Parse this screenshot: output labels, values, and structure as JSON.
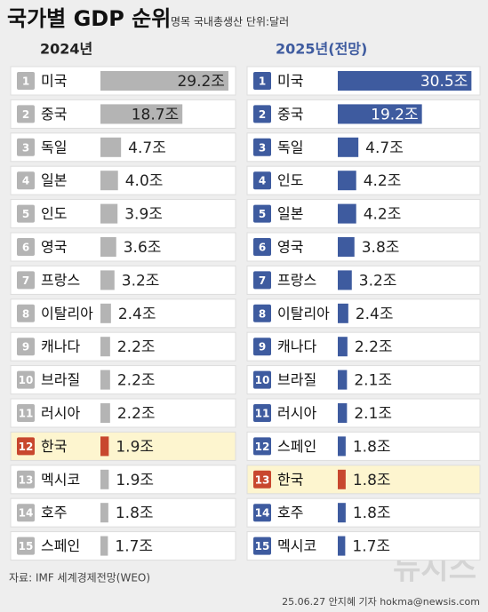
{
  "title": "국가별 GDP 순위",
  "subtitle": "명목 국내총생산 단위:달러",
  "source": "자료: IMF 세계경제전망(WEO)",
  "credit": "25.06.27 안지혜 기자 hokma@newsis.com",
  "logo": "뉴시스",
  "chart_data": [
    {
      "type": "bar",
      "title": "2024년",
      "color": "#b4b4b4",
      "title_color": "#222222",
      "highlight": "한국",
      "highlight_color": "#c8472e",
      "ranks": [
        1,
        2,
        3,
        4,
        5,
        6,
        7,
        8,
        9,
        10,
        11,
        12,
        13,
        14,
        15
      ],
      "categories": [
        "미국",
        "중국",
        "독일",
        "일본",
        "인도",
        "영국",
        "프랑스",
        "이탈리아",
        "캐나다",
        "브라질",
        "러시아",
        "한국",
        "멕시코",
        "호주",
        "스페인"
      ],
      "values": [
        29.2,
        18.7,
        4.7,
        4.0,
        3.9,
        3.6,
        3.2,
        2.4,
        2.2,
        2.2,
        2.2,
        1.9,
        1.9,
        1.8,
        1.7
      ],
      "value_labels": [
        "29.2조",
        "18.7조",
        "4.7조",
        "4.0조",
        "3.9조",
        "3.6조",
        "3.2조",
        "2.4조",
        "2.2조",
        "2.2조",
        "2.2조",
        "1.9조",
        "1.9조",
        "1.8조",
        "1.7조"
      ]
    },
    {
      "type": "bar",
      "title": "2025년(전망)",
      "color": "#3e5b9f",
      "title_color": "#3e5b9f",
      "highlight": "한국",
      "highlight_color": "#c8472e",
      "ranks": [
        1,
        2,
        3,
        4,
        5,
        6,
        7,
        8,
        9,
        10,
        11,
        12,
        13,
        14,
        15
      ],
      "categories": [
        "미국",
        "중국",
        "독일",
        "인도",
        "일본",
        "영국",
        "프랑스",
        "이탈리아",
        "캐나다",
        "브라질",
        "러시아",
        "스페인",
        "한국",
        "호주",
        "멕시코"
      ],
      "values": [
        30.5,
        19.2,
        4.7,
        4.2,
        4.2,
        3.8,
        3.2,
        2.4,
        2.2,
        2.1,
        2.1,
        1.8,
        1.8,
        1.8,
        1.7
      ],
      "value_labels": [
        "30.5조",
        "19.2조",
        "4.7조",
        "4.2조",
        "4.2조",
        "3.8조",
        "3.2조",
        "2.4조",
        "2.2조",
        "2.1조",
        "2.1조",
        "1.8조",
        "1.8조",
        "1.8조",
        "1.7조"
      ]
    }
  ]
}
